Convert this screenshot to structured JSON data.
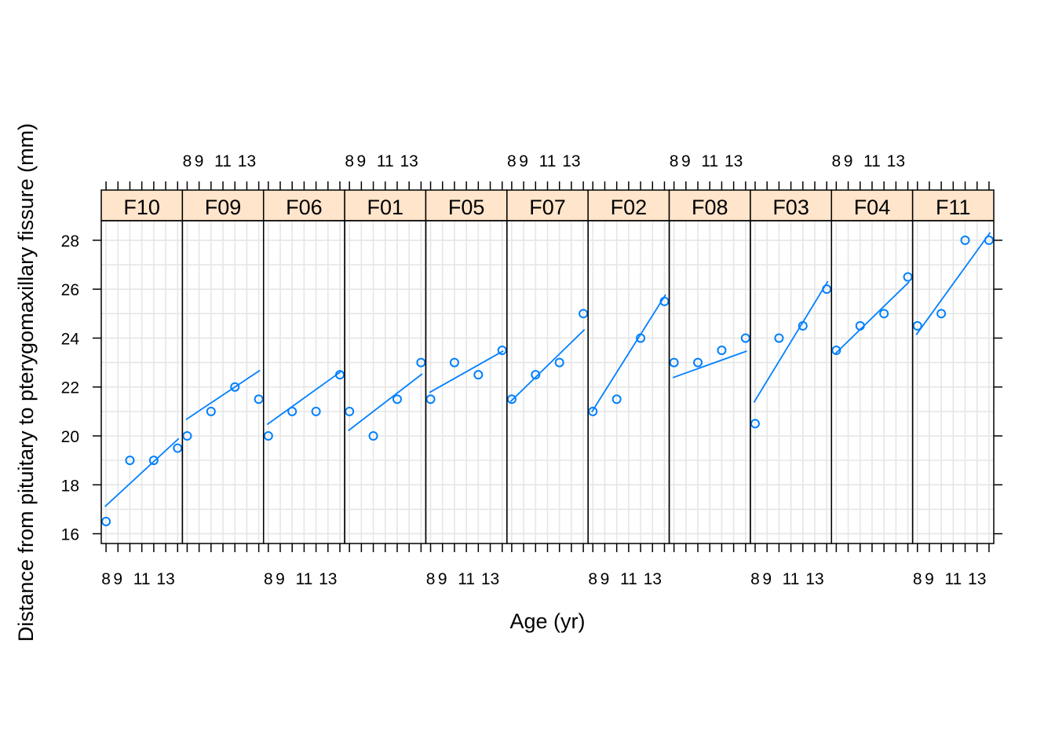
{
  "chart_data": {
    "type": "scatter",
    "xlabel": "Age (yr)",
    "ylabel": "Distance from pituitary to pterygomaxillary fissure (mm)",
    "x_tick_labels": [
      "8",
      "9",
      "11",
      "13"
    ],
    "y_ticks": [
      16,
      18,
      20,
      22,
      24,
      26,
      28
    ],
    "xlim": [
      7.6,
      14.4
    ],
    "ylim": [
      15.6,
      28.8
    ],
    "grid": true,
    "colors": {
      "points": "#0080ff",
      "fit_line": "#0080ff",
      "strip": "#ffe5cc",
      "grid": "#e6e6e6"
    },
    "panels": [
      {
        "name": "F10",
        "x": [
          8,
          10,
          12,
          14
        ],
        "y": [
          16.5,
          19.0,
          19.0,
          19.5
        ],
        "fit": {
          "intercept": 13.55,
          "slope": 0.45
        }
      },
      {
        "name": "F09",
        "x": [
          8,
          10,
          12,
          14
        ],
        "y": [
          20.0,
          21.0,
          22.0,
          21.5
        ],
        "fit": {
          "intercept": 18.1,
          "slope": 0.325
        }
      },
      {
        "name": "F06",
        "x": [
          8,
          10,
          12,
          14
        ],
        "y": [
          20.0,
          21.0,
          21.0,
          22.5
        ],
        "fit": {
          "intercept": 17.7,
          "slope": 0.35
        }
      },
      {
        "name": "F01",
        "x": [
          8,
          10,
          12,
          14
        ],
        "y": [
          21.0,
          20.0,
          21.5,
          23.0
        ],
        "fit": {
          "intercept": 17.25,
          "slope": 0.375
        }
      },
      {
        "name": "F05",
        "x": [
          8,
          10,
          12,
          14
        ],
        "y": [
          21.5,
          23.0,
          22.5,
          23.5
        ],
        "fit": {
          "intercept": 19.6,
          "slope": 0.275
        }
      },
      {
        "name": "F07",
        "x": [
          8,
          10,
          12,
          14
        ],
        "y": [
          21.5,
          22.5,
          23.0,
          25.0
        ],
        "fit": {
          "intercept": 17.65,
          "slope": 0.475
        }
      },
      {
        "name": "F02",
        "x": [
          8,
          10,
          12,
          14
        ],
        "y": [
          21.0,
          21.5,
          24.0,
          25.5
        ],
        "fit": {
          "intercept": 14.85,
          "slope": 0.775
        }
      },
      {
        "name": "F08",
        "x": [
          8,
          10,
          12,
          14
        ],
        "y": [
          23.0,
          23.0,
          23.5,
          24.0
        ],
        "fit": {
          "intercept": 21.0,
          "slope": 0.175
        }
      },
      {
        "name": "F03",
        "x": [
          8,
          10,
          12,
          14
        ],
        "y": [
          20.5,
          24.0,
          24.5,
          26.0
        ],
        "fit": {
          "intercept": 15.05,
          "slope": 0.8
        }
      },
      {
        "name": "F04",
        "x": [
          8,
          10,
          12,
          14
        ],
        "y": [
          23.5,
          24.5,
          25.0,
          26.5
        ],
        "fit": {
          "intercept": 19.6,
          "slope": 0.475
        }
      },
      {
        "name": "F11",
        "x": [
          8,
          10,
          12,
          14
        ],
        "y": [
          24.5,
          25.0,
          28.0,
          28.0
        ],
        "fit": {
          "intercept": 18.8,
          "slope": 0.675
        }
      }
    ]
  }
}
